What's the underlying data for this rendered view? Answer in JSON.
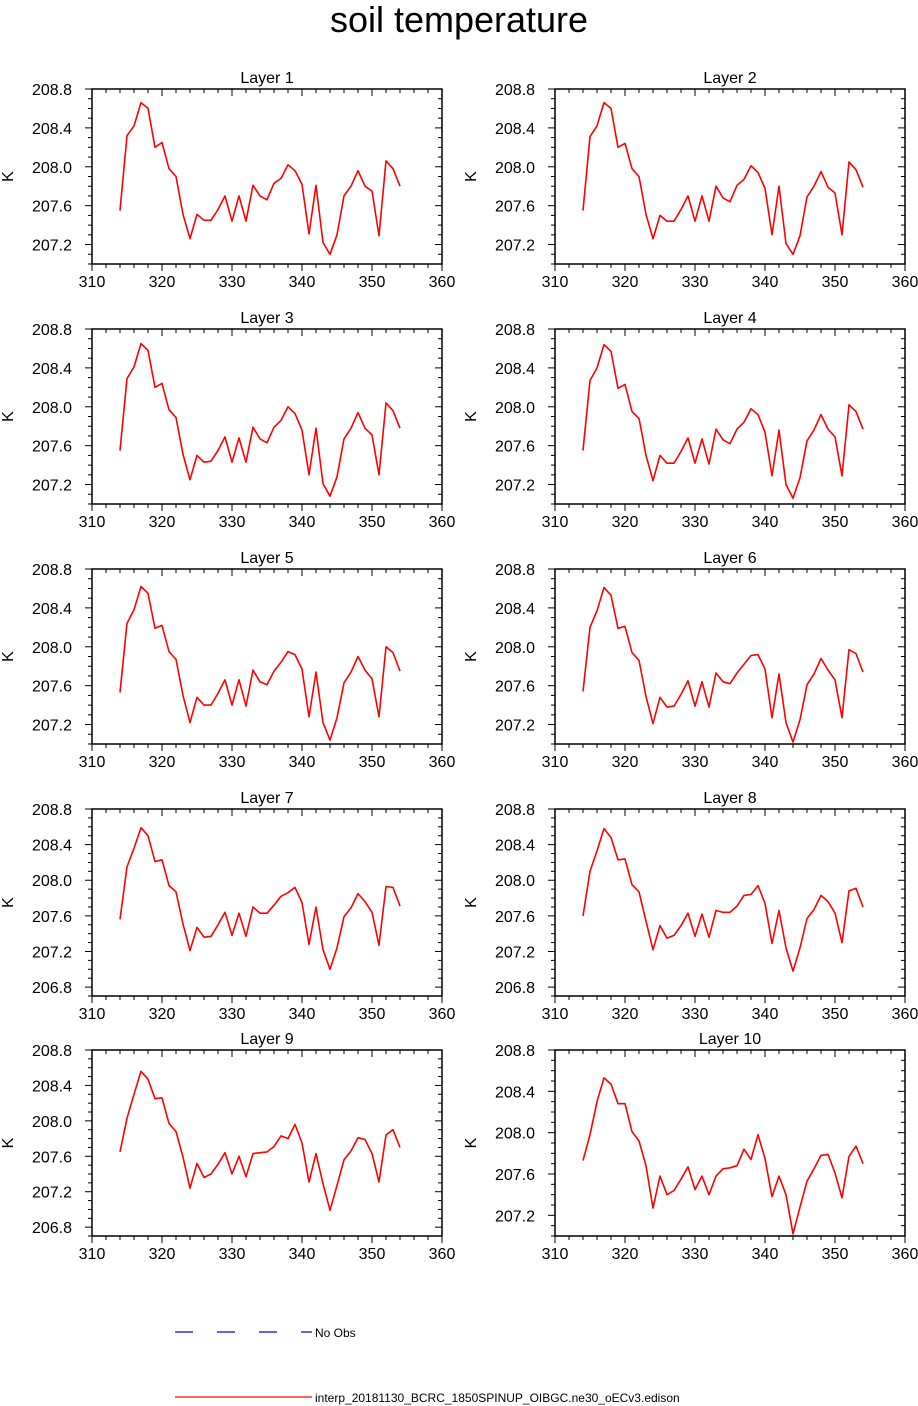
{
  "figure_title": "soil temperature",
  "colors": {
    "model_line": "#ff0000",
    "obs_line": "#0000ff",
    "axis": "#000000"
  },
  "legend": {
    "obs_label": "No Obs",
    "model_label": "interp_20181130_BCRC_1850SPINUP_OIBGC.ne30_oECv3.edison"
  },
  "chart_data": [
    {
      "type": "line",
      "title": "Layer 1",
      "ylabel": "K",
      "xlim": [
        310,
        360
      ],
      "ylim": [
        207.0,
        208.8
      ],
      "xticks": [
        310,
        320,
        330,
        340,
        350,
        360
      ],
      "yticks": [
        207.2,
        207.6,
        208.0,
        208.4,
        208.8
      ],
      "x": [
        314,
        315,
        316,
        317,
        318,
        319,
        320,
        321,
        322,
        323,
        324,
        325,
        326,
        327,
        328,
        329,
        330,
        331,
        332,
        333,
        334,
        335,
        336,
        337,
        338,
        339,
        340,
        341,
        342,
        343,
        344,
        345,
        346,
        347,
        348,
        349,
        350,
        351,
        352,
        353,
        354
      ],
      "series": [
        {
          "name": "interp_20181130_BCRC_1850SPINUP_OIBGC.ne30_oECv3.edison",
          "values": [
            207.55,
            208.32,
            208.42,
            208.66,
            208.6,
            208.2,
            208.25,
            207.98,
            207.9,
            207.51,
            207.26,
            207.51,
            207.45,
            207.45,
            207.56,
            207.7,
            207.44,
            207.7,
            207.44,
            207.81,
            207.7,
            207.66,
            207.83,
            207.88,
            208.02,
            207.96,
            207.82,
            207.31,
            207.81,
            207.22,
            207.1,
            207.3,
            207.7,
            207.8,
            207.96,
            207.8,
            207.75,
            207.29,
            208.06,
            207.98,
            207.8
          ]
        }
      ]
    },
    {
      "type": "line",
      "title": "Layer 2",
      "ylabel": "K",
      "xlim": [
        310,
        360
      ],
      "ylim": [
        207.0,
        208.8
      ],
      "xticks": [
        310,
        320,
        330,
        340,
        350,
        360
      ],
      "yticks": [
        207.2,
        207.6,
        208.0,
        208.4,
        208.8
      ],
      "x": [
        314,
        315,
        316,
        317,
        318,
        319,
        320,
        321,
        322,
        323,
        324,
        325,
        326,
        327,
        328,
        329,
        330,
        331,
        332,
        333,
        334,
        335,
        336,
        337,
        338,
        339,
        340,
        341,
        342,
        343,
        344,
        345,
        346,
        347,
        348,
        349,
        350,
        351,
        352,
        353,
        354
      ],
      "series": [
        {
          "name": "interp_20181130_BCRC_1850SPINUP_OIBGC.ne30_oECv3.edison",
          "values": [
            207.55,
            208.31,
            208.42,
            208.66,
            208.6,
            208.2,
            208.24,
            207.98,
            207.9,
            207.51,
            207.26,
            207.5,
            207.44,
            207.44,
            207.56,
            207.7,
            207.44,
            207.7,
            207.44,
            207.8,
            207.68,
            207.64,
            207.81,
            207.87,
            208.01,
            207.94,
            207.78,
            207.3,
            207.8,
            207.21,
            207.1,
            207.29,
            207.69,
            207.8,
            207.95,
            207.79,
            207.73,
            207.3,
            208.05,
            207.97,
            207.79
          ]
        }
      ]
    },
    {
      "type": "line",
      "title": "Layer 3",
      "ylabel": "K",
      "xlim": [
        310,
        360
      ],
      "ylim": [
        207.0,
        208.8
      ],
      "xticks": [
        310,
        320,
        330,
        340,
        350,
        360
      ],
      "yticks": [
        207.2,
        207.6,
        208.0,
        208.4,
        208.8
      ],
      "x": [
        314,
        315,
        316,
        317,
        318,
        319,
        320,
        321,
        322,
        323,
        324,
        325,
        326,
        327,
        328,
        329,
        330,
        331,
        332,
        333,
        334,
        335,
        336,
        337,
        338,
        339,
        340,
        341,
        342,
        343,
        344,
        345,
        346,
        347,
        348,
        349,
        350,
        351,
        352,
        353,
        354
      ],
      "series": [
        {
          "name": "interp_20181130_BCRC_1850SPINUP_OIBGC.ne30_oECv3.edison",
          "values": [
            207.55,
            208.29,
            208.41,
            208.65,
            208.58,
            208.2,
            208.24,
            207.97,
            207.89,
            207.51,
            207.25,
            207.5,
            207.43,
            207.44,
            207.55,
            207.69,
            207.43,
            207.68,
            207.43,
            207.79,
            207.67,
            207.63,
            207.79,
            207.86,
            208.0,
            207.93,
            207.76,
            207.3,
            207.78,
            207.21,
            207.08,
            207.28,
            207.67,
            207.78,
            207.94,
            207.78,
            207.71,
            207.3,
            208.04,
            207.96,
            207.78
          ]
        }
      ]
    },
    {
      "type": "line",
      "title": "Layer 4",
      "ylabel": "K",
      "xlim": [
        310,
        360
      ],
      "ylim": [
        207.0,
        208.8
      ],
      "xticks": [
        310,
        320,
        330,
        340,
        350,
        360
      ],
      "yticks": [
        207.2,
        207.6,
        208.0,
        208.4,
        208.8
      ],
      "x": [
        314,
        315,
        316,
        317,
        318,
        319,
        320,
        321,
        322,
        323,
        324,
        325,
        326,
        327,
        328,
        329,
        330,
        331,
        332,
        333,
        334,
        335,
        336,
        337,
        338,
        339,
        340,
        341,
        342,
        343,
        344,
        345,
        346,
        347,
        348,
        349,
        350,
        351,
        352,
        353,
        354
      ],
      "series": [
        {
          "name": "interp_20181130_BCRC_1850SPINUP_OIBGC.ne30_oECv3.edison",
          "values": [
            207.55,
            208.27,
            208.4,
            208.64,
            208.57,
            208.19,
            208.23,
            207.95,
            207.88,
            207.5,
            207.24,
            207.5,
            207.42,
            207.42,
            207.54,
            207.68,
            207.42,
            207.67,
            207.41,
            207.77,
            207.66,
            207.62,
            207.77,
            207.84,
            207.98,
            207.92,
            207.74,
            207.29,
            207.76,
            207.2,
            207.06,
            207.27,
            207.65,
            207.76,
            207.92,
            207.77,
            207.69,
            207.29,
            208.02,
            207.95,
            207.77
          ]
        }
      ]
    },
    {
      "type": "line",
      "title": "Layer 5",
      "ylabel": "K",
      "xlim": [
        310,
        360
      ],
      "ylim": [
        207.0,
        208.8
      ],
      "xticks": [
        310,
        320,
        330,
        340,
        350,
        360
      ],
      "yticks": [
        207.2,
        207.6,
        208.0,
        208.4,
        208.8
      ],
      "x": [
        314,
        315,
        316,
        317,
        318,
        319,
        320,
        321,
        322,
        323,
        324,
        325,
        326,
        327,
        328,
        329,
        330,
        331,
        332,
        333,
        334,
        335,
        336,
        337,
        338,
        339,
        340,
        341,
        342,
        343,
        344,
        345,
        346,
        347,
        348,
        349,
        350,
        351,
        352,
        353,
        354
      ],
      "series": [
        {
          "name": "interp_20181130_BCRC_1850SPINUP_OIBGC.ne30_oECv3.edison",
          "values": [
            207.53,
            208.24,
            208.38,
            208.62,
            208.55,
            208.19,
            208.22,
            207.95,
            207.87,
            207.5,
            207.22,
            207.48,
            207.4,
            207.4,
            207.52,
            207.66,
            207.4,
            207.66,
            207.39,
            207.76,
            207.64,
            207.61,
            207.75,
            207.84,
            207.95,
            207.92,
            207.77,
            207.28,
            207.74,
            207.22,
            207.04,
            207.27,
            207.63,
            207.74,
            207.9,
            207.76,
            207.67,
            207.28,
            208.0,
            207.94,
            207.75
          ]
        }
      ]
    },
    {
      "type": "line",
      "title": "Layer 6",
      "ylabel": "K",
      "xlim": [
        310,
        360
      ],
      "ylim": [
        207.0,
        208.8
      ],
      "xticks": [
        310,
        320,
        330,
        340,
        350,
        360
      ],
      "yticks": [
        207.2,
        207.6,
        208.0,
        208.4,
        208.8
      ],
      "x": [
        314,
        315,
        316,
        317,
        318,
        319,
        320,
        321,
        322,
        323,
        324,
        325,
        326,
        327,
        328,
        329,
        330,
        331,
        332,
        333,
        334,
        335,
        336,
        337,
        338,
        339,
        340,
        341,
        342,
        343,
        344,
        345,
        346,
        347,
        348,
        349,
        350,
        351,
        352,
        353,
        354
      ],
      "series": [
        {
          "name": "interp_20181130_BCRC_1850SPINUP_OIBGC.ne30_oECv3.edison",
          "values": [
            207.54,
            208.2,
            208.37,
            208.61,
            208.53,
            208.19,
            208.21,
            207.94,
            207.86,
            207.49,
            207.21,
            207.48,
            207.38,
            207.39,
            207.51,
            207.65,
            207.39,
            207.64,
            207.38,
            207.73,
            207.64,
            207.62,
            207.73,
            207.82,
            207.91,
            207.92,
            207.77,
            207.27,
            207.72,
            207.22,
            207.02,
            207.25,
            207.61,
            207.72,
            207.88,
            207.76,
            207.66,
            207.27,
            207.97,
            207.93,
            207.74
          ]
        }
      ]
    },
    {
      "type": "line",
      "title": "Layer 7",
      "ylabel": "K",
      "xlim": [
        310,
        360
      ],
      "ylim": [
        206.7,
        208.8
      ],
      "xticks": [
        310,
        320,
        330,
        340,
        350,
        360
      ],
      "yticks": [
        206.8,
        207.2,
        207.6,
        208.0,
        208.4,
        208.8
      ],
      "x": [
        314,
        315,
        316,
        317,
        318,
        319,
        320,
        321,
        322,
        323,
        324,
        325,
        326,
        327,
        328,
        329,
        330,
        331,
        332,
        333,
        334,
        335,
        336,
        337,
        338,
        339,
        340,
        341,
        342,
        343,
        344,
        345,
        346,
        347,
        348,
        349,
        350,
        351,
        352,
        353,
        354
      ],
      "series": [
        {
          "name": "interp_20181130_BCRC_1850SPINUP_OIBGC.ne30_oECv3.edison",
          "values": [
            207.56,
            208.15,
            208.36,
            208.59,
            208.5,
            208.21,
            208.23,
            207.94,
            207.87,
            207.51,
            207.21,
            207.47,
            207.36,
            207.37,
            207.5,
            207.64,
            207.38,
            207.63,
            207.37,
            207.7,
            207.63,
            207.63,
            207.72,
            207.82,
            207.86,
            207.92,
            207.75,
            207.28,
            207.7,
            207.22,
            207.0,
            207.24,
            207.59,
            207.69,
            207.85,
            207.76,
            207.64,
            207.27,
            207.93,
            207.92,
            207.71
          ]
        }
      ]
    },
    {
      "type": "line",
      "title": "Layer 8",
      "ylabel": "K",
      "xlim": [
        310,
        360
      ],
      "ylim": [
        206.7,
        208.8
      ],
      "xticks": [
        310,
        320,
        330,
        340,
        350,
        360
      ],
      "yticks": [
        206.8,
        207.2,
        207.6,
        208.0,
        208.4,
        208.8
      ],
      "x": [
        314,
        315,
        316,
        317,
        318,
        319,
        320,
        321,
        322,
        323,
        324,
        325,
        326,
        327,
        328,
        329,
        330,
        331,
        332,
        333,
        334,
        335,
        336,
        337,
        338,
        339,
        340,
        341,
        342,
        343,
        344,
        345,
        346,
        347,
        348,
        349,
        350,
        351,
        352,
        353,
        354
      ],
      "series": [
        {
          "name": "interp_20181130_BCRC_1850SPINUP_OIBGC.ne30_oECv3.edison",
          "values": [
            207.6,
            208.1,
            208.33,
            208.58,
            208.48,
            208.23,
            208.24,
            207.95,
            207.87,
            207.54,
            207.22,
            207.49,
            207.35,
            207.38,
            207.49,
            207.63,
            207.37,
            207.62,
            207.36,
            207.66,
            207.64,
            207.64,
            207.71,
            207.83,
            207.84,
            207.94,
            207.74,
            207.29,
            207.66,
            207.24,
            206.98,
            207.24,
            207.57,
            207.67,
            207.83,
            207.76,
            207.63,
            207.3,
            207.88,
            207.91,
            207.7
          ]
        }
      ]
    },
    {
      "type": "line",
      "title": "Layer 9",
      "ylabel": "K",
      "xlim": [
        310,
        360
      ],
      "ylim": [
        206.7,
        208.8
      ],
      "xticks": [
        310,
        320,
        330,
        340,
        350,
        360
      ],
      "yticks": [
        206.8,
        207.2,
        207.6,
        208.0,
        208.4,
        208.8
      ],
      "x": [
        314,
        315,
        316,
        317,
        318,
        319,
        320,
        321,
        322,
        323,
        324,
        325,
        326,
        327,
        328,
        329,
        330,
        331,
        332,
        333,
        334,
        335,
        336,
        337,
        338,
        339,
        340,
        341,
        342,
        343,
        344,
        345,
        346,
        347,
        348,
        349,
        350,
        351,
        352,
        353,
        354
      ],
      "series": [
        {
          "name": "interp_20181130_BCRC_1850SPINUP_OIBGC.ne30_oECv3.edison",
          "values": [
            207.65,
            208.03,
            208.3,
            208.56,
            208.47,
            208.25,
            208.26,
            207.97,
            207.88,
            207.59,
            207.24,
            207.52,
            207.36,
            207.4,
            207.51,
            207.64,
            207.4,
            207.6,
            207.37,
            207.63,
            207.64,
            207.65,
            207.71,
            207.83,
            207.8,
            207.96,
            207.75,
            207.31,
            207.63,
            207.29,
            206.99,
            207.27,
            207.56,
            207.66,
            207.81,
            207.79,
            207.63,
            207.31,
            207.84,
            207.9,
            207.7
          ]
        }
      ]
    },
    {
      "type": "line",
      "title": "Layer 10",
      "ylabel": "K",
      "xlim": [
        310,
        360
      ],
      "ylim": [
        207.0,
        208.8
      ],
      "xticks": [
        310,
        320,
        330,
        340,
        350,
        360
      ],
      "yticks": [
        207.2,
        207.6,
        208.0,
        208.4,
        208.8
      ],
      "x": [
        314,
        315,
        316,
        317,
        318,
        319,
        320,
        321,
        322,
        323,
        324,
        325,
        326,
        327,
        328,
        329,
        330,
        331,
        332,
        333,
        334,
        335,
        336,
        337,
        338,
        339,
        340,
        341,
        342,
        343,
        344,
        345,
        346,
        347,
        348,
        349,
        350,
        351,
        352,
        353,
        354
      ],
      "series": [
        {
          "name": "interp_20181130_BCRC_1850SPINUP_OIBGC.ne30_oECv3.edison",
          "values": [
            207.73,
            207.98,
            208.3,
            208.53,
            208.47,
            208.28,
            208.28,
            208.01,
            207.92,
            207.68,
            207.27,
            207.58,
            207.4,
            207.44,
            207.55,
            207.67,
            207.45,
            207.58,
            207.4,
            207.58,
            207.65,
            207.66,
            207.68,
            207.84,
            207.74,
            207.98,
            207.75,
            207.38,
            207.58,
            207.4,
            207.02,
            207.28,
            207.53,
            207.65,
            207.78,
            207.79,
            207.61,
            207.37,
            207.77,
            207.87,
            207.7
          ]
        }
      ]
    }
  ]
}
